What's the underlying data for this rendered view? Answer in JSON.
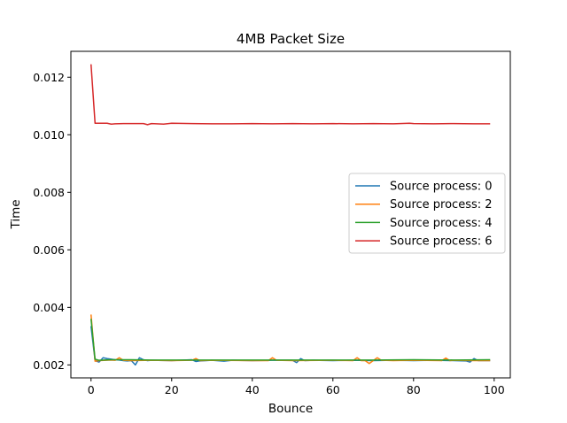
{
  "chart_data": {
    "type": "line",
    "title": "4MB Packet Size",
    "xlabel": "Bounce",
    "ylabel": "Time",
    "xlim": [
      -5,
      104
    ],
    "ylim": [
      0.00155,
      0.0129
    ],
    "xticks": [
      0,
      20,
      40,
      60,
      80,
      100
    ],
    "yticks": [
      0.002,
      0.004,
      0.006,
      0.008,
      0.01,
      0.012
    ],
    "ytick_labels": [
      "0.002",
      "0.004",
      "0.006",
      "0.008",
      "0.010",
      "0.012"
    ],
    "grid": false,
    "legend_position": "center-right",
    "series": [
      {
        "name": "Source process: 0",
        "color": "#1f77b4",
        "x": [
          0,
          1,
          2,
          3,
          4,
          5,
          6,
          7,
          8,
          9,
          10,
          11,
          12,
          13,
          14,
          15,
          20,
          25,
          26,
          27,
          30,
          33,
          35,
          40,
          45,
          50,
          51,
          52,
          53,
          55,
          60,
          65,
          70,
          75,
          80,
          85,
          90,
          93,
          94,
          95,
          96,
          99
        ],
        "y": [
          0.00335,
          0.00215,
          0.0021,
          0.00225,
          0.00222,
          0.0022,
          0.00218,
          0.00217,
          0.00215,
          0.00214,
          0.00215,
          0.002,
          0.00225,
          0.00218,
          0.00215,
          0.00216,
          0.00215,
          0.00218,
          0.00212,
          0.00214,
          0.00216,
          0.00213,
          0.00216,
          0.00215,
          0.00216,
          0.00216,
          0.00208,
          0.00222,
          0.00215,
          0.00216,
          0.00215,
          0.00216,
          0.00215,
          0.00216,
          0.00215,
          0.00216,
          0.00215,
          0.00214,
          0.0021,
          0.00222,
          0.00215,
          0.00215
        ]
      },
      {
        "name": "Source process: 2",
        "color": "#ff7f0e",
        "x": [
          0,
          1,
          2,
          5,
          6,
          7,
          8,
          10,
          15,
          20,
          25,
          26,
          27,
          30,
          40,
          44,
          45,
          46,
          50,
          60,
          65,
          66,
          67,
          68,
          69,
          70,
          71,
          72,
          75,
          80,
          87,
          88,
          89,
          90,
          95,
          99
        ],
        "y": [
          0.00375,
          0.00213,
          0.00215,
          0.00217,
          0.00216,
          0.00225,
          0.00216,
          0.00215,
          0.00216,
          0.00215,
          0.00216,
          0.00222,
          0.00215,
          0.00216,
          0.00215,
          0.00215,
          0.00225,
          0.00216,
          0.00215,
          0.00216,
          0.00215,
          0.00225,
          0.00215,
          0.00215,
          0.00205,
          0.00215,
          0.00225,
          0.00216,
          0.00215,
          0.00216,
          0.00215,
          0.00224,
          0.00215,
          0.00216,
          0.00215,
          0.00215
        ]
      },
      {
        "name": "Source process: 4",
        "color": "#2ca02c",
        "x": [
          0,
          1,
          2,
          5,
          10,
          15,
          20,
          30,
          40,
          50,
          60,
          70,
          80,
          90,
          99
        ],
        "y": [
          0.0036,
          0.0022,
          0.00216,
          0.00218,
          0.00218,
          0.00217,
          0.00217,
          0.00217,
          0.00217,
          0.00217,
          0.00217,
          0.00217,
          0.00218,
          0.00217,
          0.00218
        ]
      },
      {
        "name": "Source process: 6",
        "color": "#d62728",
        "x": [
          0,
          1,
          2,
          3,
          4,
          5,
          6,
          8,
          10,
          12,
          13,
          14,
          15,
          18,
          20,
          25,
          30,
          35,
          40,
          45,
          50,
          55,
          60,
          65,
          70,
          75,
          79,
          80,
          85,
          90,
          95,
          99
        ],
        "y": [
          0.01245,
          0.0104,
          0.0104,
          0.0104,
          0.0104,
          0.01037,
          0.01038,
          0.01039,
          0.01039,
          0.01039,
          0.01039,
          0.01035,
          0.01039,
          0.01037,
          0.0104,
          0.01039,
          0.01038,
          0.01038,
          0.01039,
          0.01038,
          0.01039,
          0.01038,
          0.01039,
          0.01038,
          0.01039,
          0.01038,
          0.0104,
          0.01039,
          0.01038,
          0.01039,
          0.01038,
          0.01038
        ]
      }
    ]
  }
}
